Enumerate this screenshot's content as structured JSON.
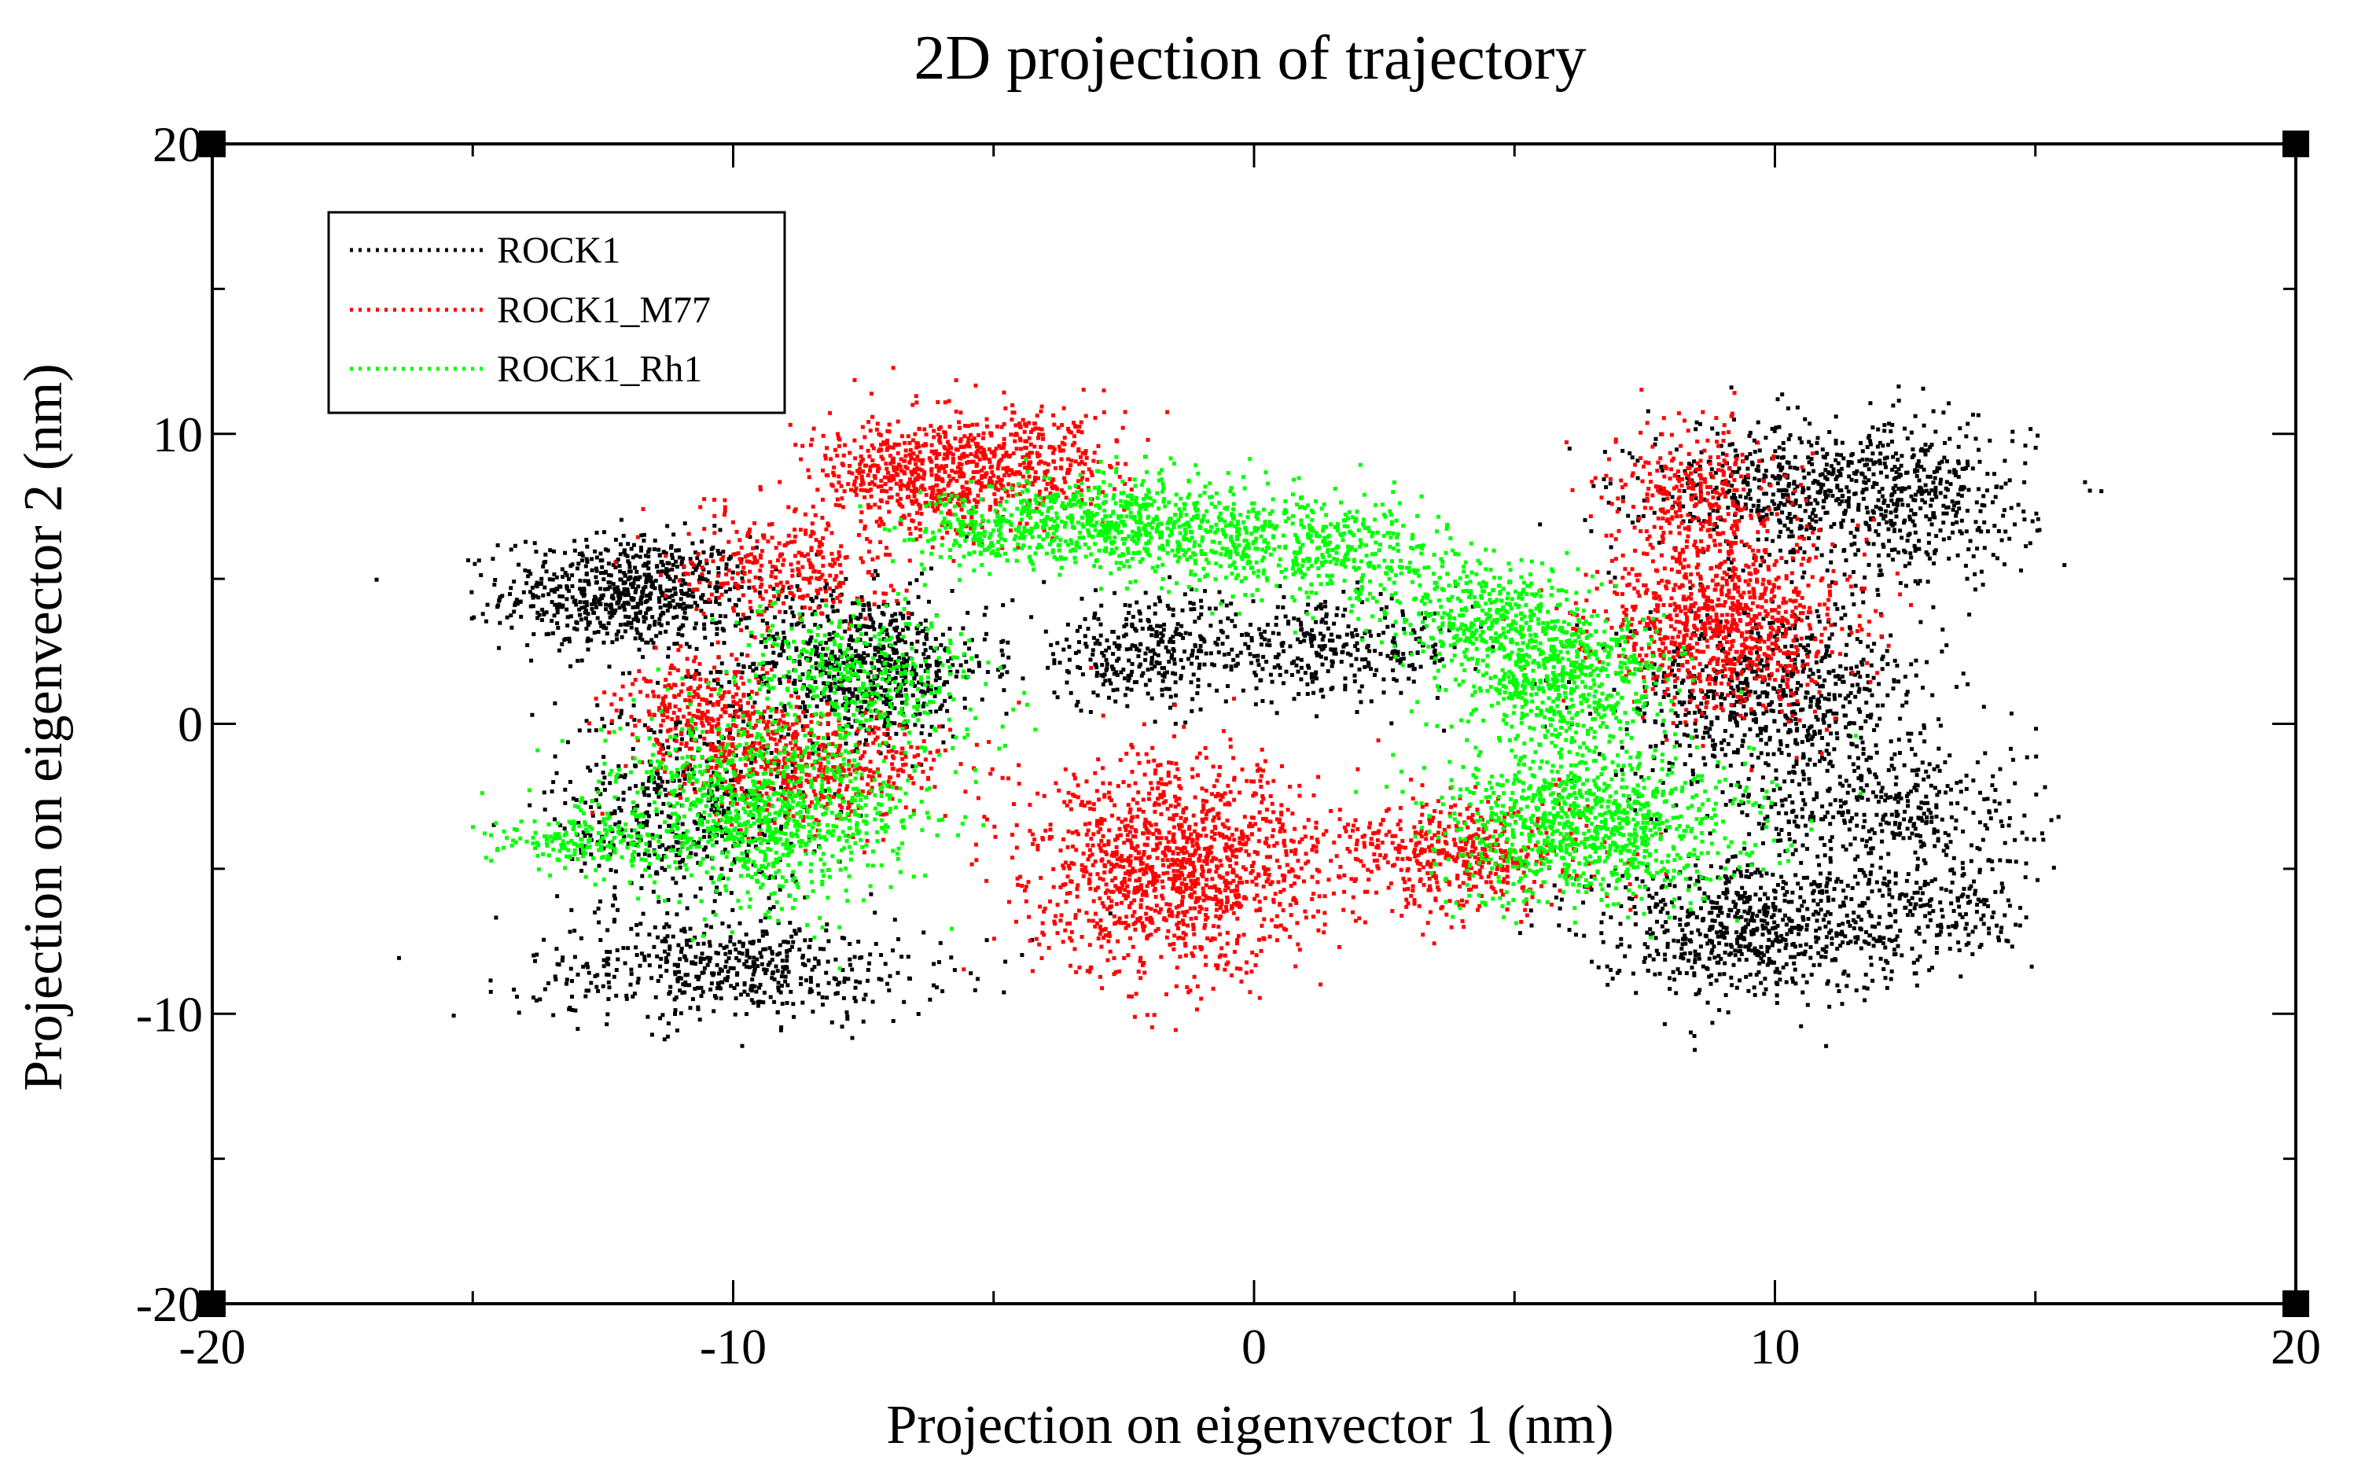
{
  "chart_data": {
    "type": "scatter",
    "title": "2D projection of trajectory",
    "xlabel": "Projection on eigenvector 1 (nm)",
    "ylabel": "Projection on eigenvector 2 (nm)",
    "xlim": [
      -20,
      20
    ],
    "ylim": [
      -20,
      20
    ],
    "x_ticks": [
      -20,
      -10,
      0,
      10,
      20
    ],
    "y_ticks": [
      -20,
      -10,
      0,
      10,
      20
    ],
    "x_tick_labels": [
      "-20",
      "-10",
      "0",
      "10",
      "20"
    ],
    "y_tick_labels": [
      "-20",
      "-10",
      "0",
      "10",
      "20"
    ],
    "x_minor_step": 5,
    "y_minor_step": 5,
    "grid": false,
    "legend_position": "top-left",
    "series": [
      {
        "name": "ROCK1",
        "color": "#000000",
        "style": "dotted",
        "clusters": [
          {
            "cx": -12.0,
            "cy": 4.5,
            "sx": 1.2,
            "sy": 1.0,
            "n": 700
          },
          {
            "cx": -7.5,
            "cy": 2.0,
            "sx": 1.2,
            "sy": 1.3,
            "n": 700
          },
          {
            "cx": -11.0,
            "cy": -3.0,
            "sx": 1.2,
            "sy": 2.0,
            "n": 500
          },
          {
            "cx": -10.0,
            "cy": -8.5,
            "sx": 2.0,
            "sy": 0.9,
            "n": 500
          },
          {
            "cx": -2.0,
            "cy": 2.5,
            "sx": 1.3,
            "sy": 1.0,
            "n": 350
          },
          {
            "cx": 1.5,
            "cy": 2.5,
            "sx": 1.3,
            "sy": 0.8,
            "n": 300
          },
          {
            "cx": 10.5,
            "cy": 8.0,
            "sx": 1.5,
            "sy": 1.2,
            "n": 600
          },
          {
            "cx": 13.0,
            "cy": 7.5,
            "sx": 1.0,
            "sy": 1.5,
            "n": 300
          },
          {
            "cx": 10.0,
            "cy": 1.0,
            "sx": 1.5,
            "sy": 1.5,
            "n": 700
          },
          {
            "cx": 12.0,
            "cy": -3.0,
            "sx": 1.5,
            "sy": 1.3,
            "n": 400
          },
          {
            "cx": 9.5,
            "cy": -7.0,
            "sx": 1.5,
            "sy": 1.2,
            "n": 700
          },
          {
            "cx": 13.0,
            "cy": -6.5,
            "sx": 1.0,
            "sy": 1.0,
            "n": 200
          }
        ]
      },
      {
        "name": "ROCK1_M77",
        "color": "#ff0000",
        "style": "dotted",
        "clusters": [
          {
            "cx": -6.5,
            "cy": 8.5,
            "sx": 1.0,
            "sy": 1.0,
            "n": 500
          },
          {
            "cx": -4.5,
            "cy": 9.0,
            "sx": 1.0,
            "sy": 0.9,
            "n": 400
          },
          {
            "cx": -9.0,
            "cy": 5.5,
            "sx": 1.0,
            "sy": 1.0,
            "n": 300
          },
          {
            "cx": -10.5,
            "cy": 0.5,
            "sx": 0.8,
            "sy": 1.0,
            "n": 300
          },
          {
            "cx": -8.5,
            "cy": -1.5,
            "sx": 1.3,
            "sy": 1.0,
            "n": 500
          },
          {
            "cx": -1.5,
            "cy": -5.0,
            "sx": 1.4,
            "sy": 1.8,
            "n": 1300
          },
          {
            "cx": 4.0,
            "cy": -4.5,
            "sx": 1.3,
            "sy": 1.0,
            "n": 500
          },
          {
            "cx": 8.5,
            "cy": 8.0,
            "sx": 0.8,
            "sy": 1.2,
            "n": 300
          },
          {
            "cx": 9.0,
            "cy": 3.5,
            "sx": 1.2,
            "sy": 1.5,
            "n": 900
          }
        ]
      },
      {
        "name": "ROCK1_Rh1",
        "color": "#00ff00",
        "style": "dotted",
        "clusters": [
          {
            "cx": -2.5,
            "cy": 7.0,
            "sx": 1.5,
            "sy": 0.8,
            "n": 600
          },
          {
            "cx": 1.0,
            "cy": 6.0,
            "sx": 1.5,
            "sy": 0.9,
            "n": 500
          },
          {
            "cx": -5.0,
            "cy": 6.5,
            "sx": 1.0,
            "sy": 0.7,
            "n": 200
          },
          {
            "cx": 4.5,
            "cy": 3.5,
            "sx": 1.0,
            "sy": 1.0,
            "n": 400
          },
          {
            "cx": 6.0,
            "cy": 1.5,
            "sx": 1.0,
            "sy": 1.3,
            "n": 600
          },
          {
            "cx": -7.5,
            "cy": 1.5,
            "sx": 1.2,
            "sy": 1.2,
            "n": 400
          },
          {
            "cx": -9.5,
            "cy": -3.0,
            "sx": 1.5,
            "sy": 1.5,
            "n": 1000
          },
          {
            "cx": -13.0,
            "cy": -4.0,
            "sx": 0.8,
            "sy": 0.4,
            "n": 150
          },
          {
            "cx": 6.5,
            "cy": -3.5,
            "sx": 1.5,
            "sy": 1.3,
            "n": 1000
          }
        ]
      }
    ]
  }
}
